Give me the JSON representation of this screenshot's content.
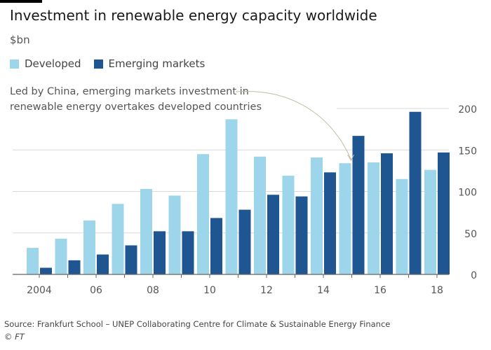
{
  "header": {
    "title": "Investment in renewable energy capacity worldwide",
    "subtitle": "$bn"
  },
  "legend": {
    "items": [
      {
        "label": "Developed",
        "color": "#9dd5ea"
      },
      {
        "label": "Emerging markets",
        "color": "#1f5691"
      }
    ]
  },
  "annotation": {
    "line1": "Led by China, emerging markets investment in",
    "line2": "renewable energy overtakes developed countries"
  },
  "footer": {
    "source": "Source: Frankfurt School – UNEP Collaborating Centre for Climate & Sustainable Energy Finance",
    "credit": "© FT"
  },
  "chart_data": {
    "type": "bar",
    "categories": [
      "2004",
      "2005",
      "2006",
      "2007",
      "2008",
      "2009",
      "2010",
      "2011",
      "2012",
      "2013",
      "2014",
      "2015",
      "2016",
      "2017",
      "2018"
    ],
    "x_tick_labels": [
      "2004",
      "",
      "06",
      "",
      "08",
      "",
      "10",
      "",
      "12",
      "",
      "14",
      "",
      "16",
      "",
      "18"
    ],
    "series": [
      {
        "name": "Developed",
        "color": "#9dd5ea",
        "values": [
          32,
          43,
          65,
          85,
          103,
          95,
          145,
          187,
          142,
          119,
          141,
          134,
          135,
          115,
          126
        ]
      },
      {
        "name": "Emerging markets",
        "color": "#1f5691",
        "values": [
          8,
          17,
          24,
          35,
          52,
          52,
          68,
          78,
          96,
          94,
          123,
          167,
          146,
          196,
          147
        ]
      }
    ],
    "ylim": [
      0,
      200
    ],
    "y_ticks": [
      0,
      50,
      100,
      150,
      200
    ],
    "y_axis_side": "right",
    "grid": true
  }
}
